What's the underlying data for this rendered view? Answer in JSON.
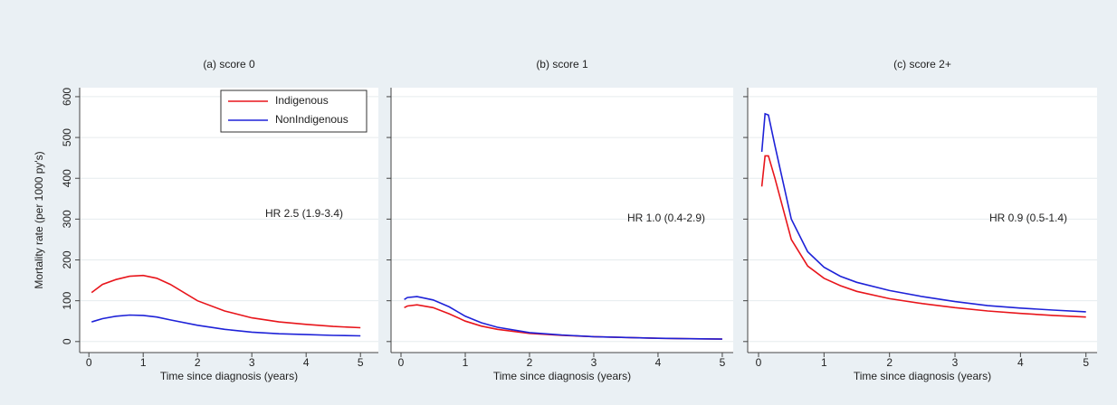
{
  "chart_data": [
    {
      "type": "line",
      "title": "(a) score 0",
      "xlabel": "Time since diagnosis (years)",
      "ylabel": "Mortality rate (per 1000 py's)",
      "annotation": "HR 2.5  (1.9-3.4)",
      "legend": "top right",
      "grid": true,
      "xlim": [
        -0.17,
        5.33
      ],
      "ylim": [
        -27,
        622
      ],
      "xticks": [
        0,
        1,
        2,
        3,
        4,
        5
      ],
      "yticks": [
        0,
        100,
        200,
        300,
        400,
        500,
        600
      ],
      "x": [
        0.05,
        0.1,
        0.25,
        0.5,
        0.75,
        1,
        1.25,
        1.5,
        2,
        2.5,
        3,
        3.5,
        4,
        4.5,
        5
      ],
      "series": [
        {
          "name": "Indigenous",
          "color": "#e8151b",
          "values": [
            120,
            125,
            140,
            152,
            160,
            162,
            155,
            140,
            100,
            75,
            58,
            48,
            42,
            37,
            34
          ]
        },
        {
          "name": "NonIndigenous",
          "color": "#1e22d8",
          "values": [
            48,
            50,
            56,
            62,
            65,
            64,
            60,
            53,
            40,
            30,
            23,
            19,
            17,
            15,
            14
          ]
        }
      ]
    },
    {
      "type": "line",
      "title": "(b) score 1",
      "xlabel": "Time since diagnosis (years)",
      "annotation": "HR 1.0 (0.4-2.9)",
      "grid": true,
      "xlim": [
        -0.155,
        5.17
      ],
      "ylim": [
        -27,
        622
      ],
      "xticks": [
        0,
        1,
        2,
        3,
        4,
        5
      ],
      "x": [
        0.05,
        0.1,
        0.25,
        0.5,
        0.75,
        1,
        1.25,
        1.5,
        2,
        2.5,
        3,
        3.5,
        4,
        4.5,
        5
      ],
      "series": [
        {
          "name": "Indigenous",
          "color": "#e8151b",
          "values": [
            83,
            87,
            90,
            83,
            68,
            50,
            38,
            30,
            20,
            15,
            12,
            10,
            8,
            7,
            6
          ]
        },
        {
          "name": "NonIndigenous",
          "color": "#1e22d8",
          "values": [
            103,
            108,
            110,
            102,
            85,
            62,
            46,
            35,
            22,
            16,
            12,
            10,
            8,
            7,
            6
          ]
        }
      ]
    },
    {
      "type": "line",
      "title": "(c) score 2+",
      "xlabel": "Time since diagnosis (years)",
      "annotation": "HR 0.9 (0.5-1.4)",
      "grid": true,
      "xlim": [
        -0.166,
        5.17
      ],
      "ylim": [
        -27,
        622
      ],
      "xticks": [
        0,
        1,
        2,
        3,
        4,
        5
      ],
      "x": [
        0.05,
        0.1,
        0.15,
        0.25,
        0.5,
        0.75,
        1,
        1.25,
        1.5,
        2,
        2.5,
        3,
        3.5,
        4,
        4.5,
        5
      ],
      "series": [
        {
          "name": "Indigenous",
          "color": "#e8151b",
          "values": [
            380,
            455,
            455,
            400,
            250,
            185,
            155,
            137,
            123,
            105,
            93,
            83,
            75,
            69,
            64,
            60
          ]
        },
        {
          "name": "NonIndigenous",
          "color": "#1e22d8",
          "values": [
            465,
            558,
            555,
            480,
            300,
            220,
            182,
            160,
            145,
            125,
            110,
            98,
            88,
            82,
            77,
            73
          ]
        }
      ]
    }
  ]
}
